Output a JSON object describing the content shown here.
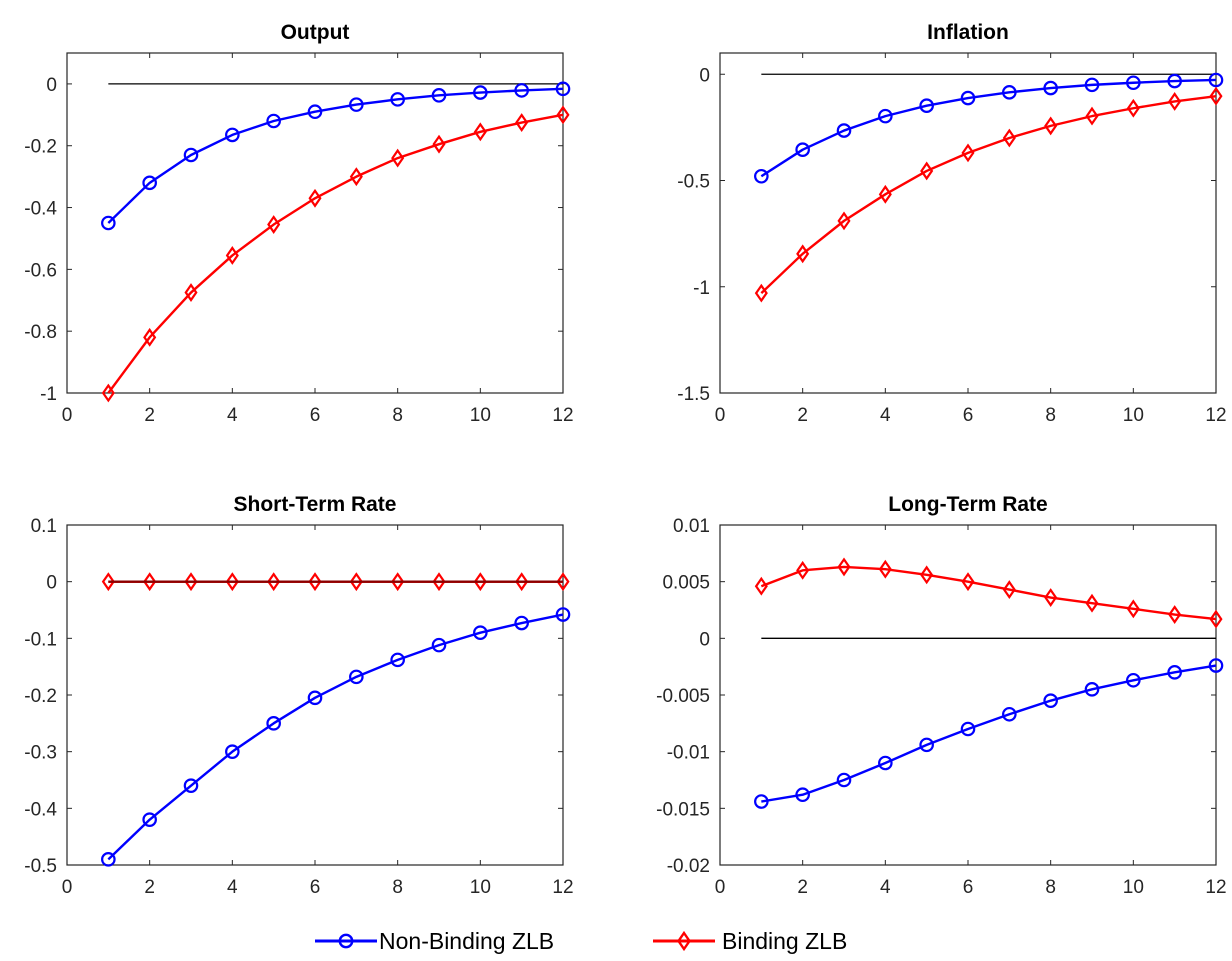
{
  "colors": {
    "non_binding": "#0000ff",
    "binding": "#ff0000",
    "binding_dark": "#8b0000"
  },
  "chart_data": [
    {
      "type": "line",
      "title": "Output",
      "xlim": [
        0,
        12
      ],
      "ylim": [
        -1,
        0.1
      ],
      "xticks": [
        0,
        2,
        4,
        6,
        8,
        10,
        12
      ],
      "yticks": [
        -1,
        -0.8,
        -0.6,
        -0.4,
        -0.2,
        0
      ],
      "ytick_labels": [
        "-1",
        "-0.8",
        "-0.6",
        "-0.4",
        "-0.2",
        "0"
      ],
      "reference_line": {
        "y": 0,
        "x": [
          1,
          12
        ]
      },
      "x": [
        1,
        2,
        3,
        4,
        5,
        6,
        7,
        8,
        9,
        10,
        11,
        12
      ],
      "series": [
        {
          "key": "non_binding",
          "values": [
            -0.45,
            -0.32,
            -0.23,
            -0.165,
            -0.12,
            -0.09,
            -0.067,
            -0.05,
            -0.037,
            -0.028,
            -0.021,
            -0.016
          ]
        },
        {
          "key": "binding",
          "values": [
            -1.0,
            -0.82,
            -0.675,
            -0.555,
            -0.455,
            -0.37,
            -0.3,
            -0.24,
            -0.195,
            -0.155,
            -0.125,
            -0.1
          ]
        }
      ]
    },
    {
      "type": "line",
      "title": "Inflation",
      "xlim": [
        0,
        12
      ],
      "ylim": [
        -1.5,
        0.1
      ],
      "xticks": [
        0,
        2,
        4,
        6,
        8,
        10,
        12
      ],
      "yticks": [
        -1.5,
        -1,
        -0.5,
        0
      ],
      "ytick_labels": [
        "-1.5",
        "-1",
        "-0.5",
        "0"
      ],
      "reference_line": {
        "y": 0,
        "x": [
          1,
          12
        ]
      },
      "x": [
        1,
        2,
        3,
        4,
        5,
        6,
        7,
        8,
        9,
        10,
        11,
        12
      ],
      "series": [
        {
          "key": "non_binding",
          "values": [
            -0.48,
            -0.355,
            -0.265,
            -0.197,
            -0.148,
            -0.112,
            -0.085,
            -0.065,
            -0.05,
            -0.04,
            -0.032,
            -0.027
          ]
        },
        {
          "key": "binding",
          "values": [
            -1.03,
            -0.845,
            -0.69,
            -0.565,
            -0.455,
            -0.37,
            -0.3,
            -0.243,
            -0.197,
            -0.16,
            -0.128,
            -0.103
          ]
        }
      ]
    },
    {
      "type": "line",
      "title": "Short-Term Rate",
      "xlim": [
        0,
        12
      ],
      "ylim": [
        -0.5,
        0.1
      ],
      "xticks": [
        0,
        2,
        4,
        6,
        8,
        10,
        12
      ],
      "yticks": [
        -0.5,
        -0.4,
        -0.3,
        -0.2,
        -0.1,
        0,
        0.1
      ],
      "ytick_labels": [
        "-0.5",
        "-0.4",
        "-0.3",
        "-0.2",
        "-0.1",
        "0",
        "0.1"
      ],
      "reference_line": {
        "y": 0,
        "x": [
          1,
          12
        ],
        "dark": true
      },
      "x": [
        1,
        2,
        3,
        4,
        5,
        6,
        7,
        8,
        9,
        10,
        11,
        12
      ],
      "series": [
        {
          "key": "non_binding",
          "values": [
            -0.49,
            -0.42,
            -0.36,
            -0.3,
            -0.25,
            -0.205,
            -0.168,
            -0.138,
            -0.112,
            -0.09,
            -0.073,
            -0.058
          ]
        },
        {
          "key": "binding",
          "values": [
            0,
            0,
            0,
            0,
            0,
            0,
            0,
            0,
            0,
            0,
            0,
            0
          ]
        }
      ]
    },
    {
      "type": "line",
      "title": "Long-Term Rate",
      "xlim": [
        0,
        12
      ],
      "ylim": [
        -0.02,
        0.01
      ],
      "xticks": [
        0,
        2,
        4,
        6,
        8,
        10,
        12
      ],
      "yticks": [
        -0.02,
        -0.015,
        -0.01,
        -0.005,
        0,
        0.005,
        0.01
      ],
      "ytick_labels": [
        "-0.02",
        "-0.015",
        "-0.01",
        "-0.005",
        "0",
        "0.005",
        "0.01"
      ],
      "reference_line": {
        "y": 0,
        "x": [
          1,
          12
        ]
      },
      "x": [
        1,
        2,
        3,
        4,
        5,
        6,
        7,
        8,
        9,
        10,
        11,
        12
      ],
      "series": [
        {
          "key": "non_binding",
          "values": [
            -0.0144,
            -0.0138,
            -0.0125,
            -0.011,
            -0.0094,
            -0.008,
            -0.0067,
            -0.0055,
            -0.0045,
            -0.0037,
            -0.003,
            -0.0024
          ]
        },
        {
          "key": "binding",
          "values": [
            0.0046,
            0.006,
            0.0063,
            0.0061,
            0.0056,
            0.005,
            0.0043,
            0.0036,
            0.0031,
            0.0026,
            0.0021,
            0.0017
          ]
        }
      ]
    }
  ],
  "legend": {
    "placement": "bottom-center",
    "items": [
      {
        "key": "non_binding",
        "label": "Non-Binding ZLB",
        "marker": "circle"
      },
      {
        "key": "binding",
        "label": "Binding ZLB",
        "marker": "diamond"
      }
    ]
  }
}
